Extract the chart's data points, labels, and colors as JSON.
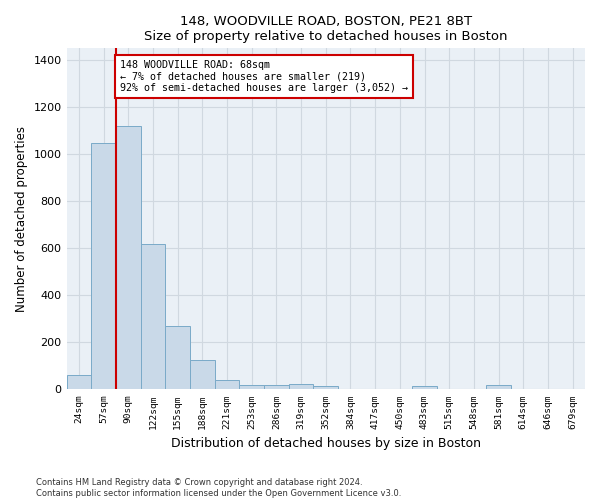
{
  "title_line1": "148, WOODVILLE ROAD, BOSTON, PE21 8BT",
  "title_line2": "Size of property relative to detached houses in Boston",
  "xlabel": "Distribution of detached houses by size in Boston",
  "ylabel": "Number of detached properties",
  "categories": [
    "24sqm",
    "57sqm",
    "90sqm",
    "122sqm",
    "155sqm",
    "188sqm",
    "221sqm",
    "253sqm",
    "286sqm",
    "319sqm",
    "352sqm",
    "384sqm",
    "417sqm",
    "450sqm",
    "483sqm",
    "515sqm",
    "548sqm",
    "581sqm",
    "614sqm",
    "646sqm",
    "679sqm"
  ],
  "bar_heights": [
    62,
    1048,
    1120,
    620,
    270,
    125,
    38,
    20,
    18,
    22,
    12,
    0,
    0,
    0,
    14,
    0,
    0,
    18,
    0,
    0,
    0
  ],
  "bar_color": "#c9d9e8",
  "bar_edge_color": "#7aaac8",
  "annotation_text": "148 WOODVILLE ROAD: 68sqm\n← 7% of detached houses are smaller (219)\n92% of semi-detached houses are larger (3,052) →",
  "annotation_box_color": "#ffffff",
  "annotation_border_color": "#cc0000",
  "red_line_color": "#cc0000",
  "red_line_x": 1.5,
  "ylim": [
    0,
    1450
  ],
  "yticks": [
    0,
    200,
    400,
    600,
    800,
    1000,
    1200,
    1400
  ],
  "grid_color": "#d0d8e0",
  "background_color": "#eaf0f6",
  "footer_line1": "Contains HM Land Registry data © Crown copyright and database right 2024.",
  "footer_line2": "Contains public sector information licensed under the Open Government Licence v3.0."
}
